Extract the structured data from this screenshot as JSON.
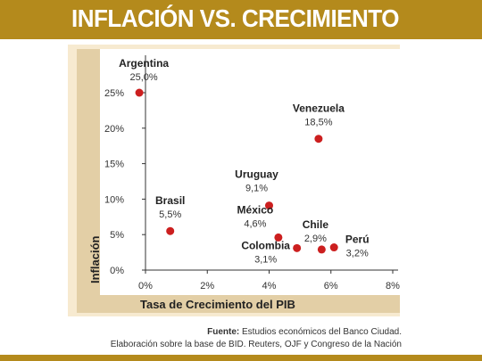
{
  "title": "INFLACIÓN VS. CRECIMIENTO",
  "chart_data": {
    "type": "scatter",
    "xlabel": "Tasa de Crecimiento  del PIB",
    "ylabel": "Inflación",
    "xlim": [
      0,
      8
    ],
    "ylim": [
      0,
      25
    ],
    "x_ticks": [
      "0%",
      "2%",
      "4%",
      "6%",
      "8%"
    ],
    "y_ticks": [
      "0%",
      "5%",
      "10%",
      "15%",
      "20%",
      "25%"
    ],
    "points": [
      {
        "name": "Argentina",
        "label": "25,0%",
        "x": -0.2,
        "y": 25.0
      },
      {
        "name": "Venezuela",
        "label": "18,5%",
        "x": 5.6,
        "y": 18.5
      },
      {
        "name": "Uruguay",
        "label": "9,1%",
        "x": 4.0,
        "y": 9.1
      },
      {
        "name": "Brasil",
        "label": "5,5%",
        "x": 0.8,
        "y": 5.5
      },
      {
        "name": "México",
        "label": "4,6%",
        "x": 4.3,
        "y": 4.6
      },
      {
        "name": "Chile",
        "label": "2,9%",
        "x": 5.7,
        "y": 2.9
      },
      {
        "name": "Colombia",
        "label": "3,1%",
        "x": 4.9,
        "y": 3.1
      },
      {
        "name": "Perú",
        "label": "3,2%",
        "x": 6.1,
        "y": 3.2
      }
    ],
    "dot_color": "#cc1f1f",
    "grid": false
  },
  "source": {
    "label": "Fuente:",
    "line1": "Estudios económicos del Banco Ciudad.",
    "line2": "Elaboración sobre la base de BID. Reuters, OJF y Congreso de la Nación"
  },
  "colors": {
    "brand": "#b48a1c",
    "panel": "#f7ead0",
    "strip": "#e3cfa6"
  }
}
